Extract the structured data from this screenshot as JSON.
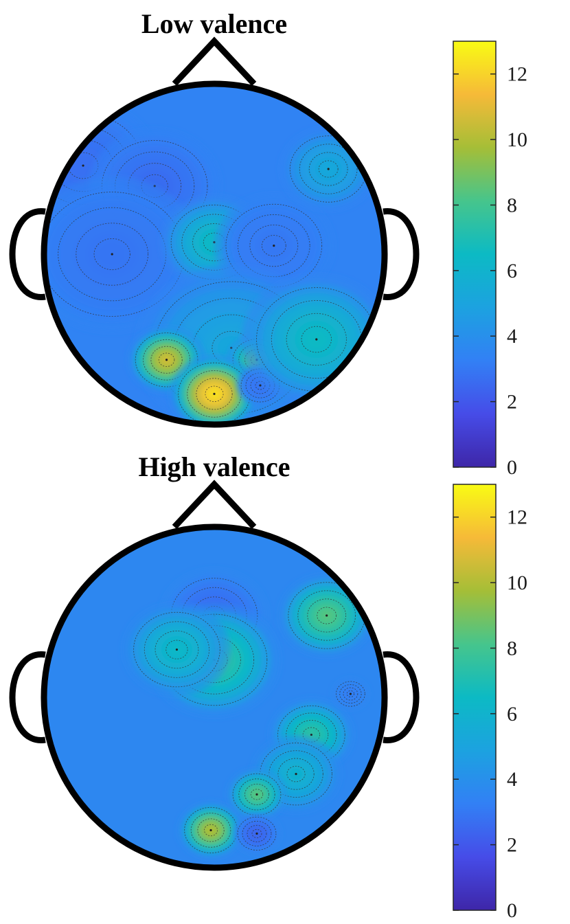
{
  "chart_data": [
    {
      "type": "heatmap",
      "subtype": "topographic-scalp-map",
      "title": "Low valence",
      "colormap": "parula",
      "colorbar": {
        "range": [
          0,
          13
        ],
        "ticks": [
          0,
          2,
          4,
          6,
          8,
          10,
          12
        ],
        "tick_labels": [
          "0",
          "2",
          "4",
          "6",
          "8",
          "10",
          "12"
        ]
      },
      "background_value": 3.4,
      "regions": [
        {
          "u": -0.77,
          "v": 0.52,
          "value": 2.7,
          "spread": 0.25
        },
        {
          "u": -0.35,
          "v": 0.4,
          "value": 2.6,
          "spread": 0.22
        },
        {
          "u": -0.6,
          "v": 0.0,
          "value": 2.9,
          "spread": 0.3
        },
        {
          "u": 0.0,
          "v": 0.07,
          "value": 6.6,
          "spread": 0.18
        },
        {
          "u": 0.35,
          "v": 0.05,
          "value": 3.0,
          "spread": 0.2
        },
        {
          "u": 0.67,
          "v": 0.5,
          "value": 5.3,
          "spread": 0.16
        },
        {
          "u": 0.1,
          "v": -0.55,
          "value": 5.2,
          "spread": 0.32
        },
        {
          "u": -0.28,
          "v": -0.62,
          "value": 10.8,
          "spread": 0.13
        },
        {
          "u": 0.25,
          "v": -0.62,
          "value": 9.0,
          "spread": 0.1
        },
        {
          "u": 0.0,
          "v": -0.82,
          "value": 12.6,
          "spread": 0.15
        },
        {
          "u": 0.27,
          "v": -0.77,
          "value": 2.9,
          "spread": 0.08
        },
        {
          "u": 0.6,
          "v": -0.5,
          "value": 6.6,
          "spread": 0.25
        }
      ]
    },
    {
      "type": "heatmap",
      "subtype": "topographic-scalp-map",
      "title": "High valence",
      "colormap": "parula",
      "colorbar": {
        "range": [
          0,
          13
        ],
        "ticks": [
          0,
          2,
          4,
          6,
          8,
          10,
          12
        ],
        "tick_labels": [
          "0",
          "2",
          "4",
          "6",
          "8",
          "10",
          "12"
        ]
      },
      "background_value": 3.6,
      "regions": [
        {
          "u": 0.0,
          "v": 0.48,
          "value": 2.5,
          "spread": 0.18
        },
        {
          "u": 0.66,
          "v": 0.48,
          "value": 8.5,
          "spread": 0.16
        },
        {
          "u": 0.0,
          "v": 0.22,
          "value": 7.8,
          "spread": 0.22
        },
        {
          "u": -0.22,
          "v": 0.28,
          "value": 6.4,
          "spread": 0.18
        },
        {
          "u": 0.57,
          "v": -0.22,
          "value": 7.6,
          "spread": 0.14
        },
        {
          "u": 0.48,
          "v": -0.45,
          "value": 6.0,
          "spread": 0.15
        },
        {
          "u": 0.25,
          "v": -0.57,
          "value": 8.6,
          "spread": 0.1
        },
        {
          "u": -0.02,
          "v": -0.78,
          "value": 10.2,
          "spread": 0.11
        },
        {
          "u": 0.25,
          "v": -0.8,
          "value": 2.4,
          "spread": 0.08
        },
        {
          "u": 0.8,
          "v": 0.02,
          "value": 3.2,
          "spread": 0.06
        }
      ]
    }
  ]
}
